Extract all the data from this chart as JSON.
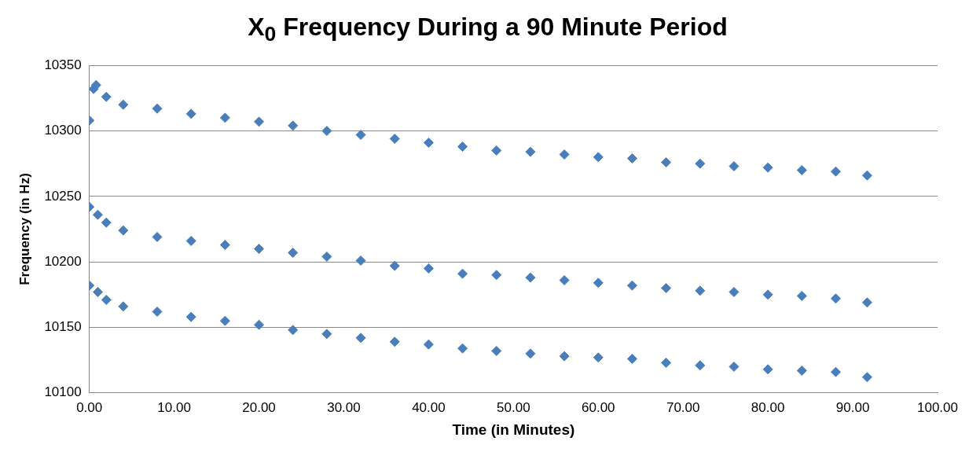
{
  "chart_data": {
    "type": "scatter",
    "title": "X$_{0}$ Frequency During a 90 Minute Period",
    "xlabel": "Time (in Minutes)",
    "ylabel": "Frequency (in Hz)",
    "xlim": [
      0,
      100
    ],
    "xticks": [
      {
        "value": 0,
        "label": "0.00"
      },
      {
        "value": 10,
        "label": "10.00"
      },
      {
        "value": 20,
        "label": "20.00"
      },
      {
        "value": 30,
        "label": "30.00"
      },
      {
        "value": 40,
        "label": "40.00"
      },
      {
        "value": 50,
        "label": "50.00"
      },
      {
        "value": 60,
        "label": "60.00"
      },
      {
        "value": 70,
        "label": "70.00"
      },
      {
        "value": 80,
        "label": "80.00"
      },
      {
        "value": 90,
        "label": "90.00"
      },
      {
        "value": 100,
        "label": "100.00"
      }
    ],
    "ylim": [
      10100,
      10350
    ],
    "yticks": [
      10100,
      10150,
      10200,
      10250,
      10300,
      10350
    ],
    "grid": "y",
    "legend": false,
    "marker": "diamond",
    "series": [
      {
        "color": "#4a7ebb",
        "x": [
          0,
          0.5,
          0.8,
          2,
          4,
          8,
          12,
          16,
          20,
          24,
          28,
          32,
          36,
          40,
          44,
          48,
          52,
          56,
          60,
          64,
          68,
          72,
          76,
          80,
          84,
          88,
          91.7
        ],
        "values": [
          10308,
          10332,
          10335,
          10326,
          10320,
          10317,
          10313,
          10310,
          10307,
          10304,
          10300,
          10297,
          10294,
          10291,
          10288,
          10285,
          10284,
          10282,
          10280,
          10279,
          10276,
          10275,
          10273,
          10272,
          10270,
          10269,
          10266
        ]
      },
      {
        "color": "#4a7ebb",
        "x": [
          0,
          1,
          2,
          4,
          8,
          12,
          16,
          20,
          24,
          28,
          32,
          36,
          40,
          44,
          48,
          52,
          56,
          60,
          64,
          68,
          72,
          76,
          80,
          84,
          88,
          91.7
        ],
        "values": [
          10242,
          10236,
          10230,
          10224,
          10219,
          10216,
          10213,
          10210,
          10207,
          10204,
          10201,
          10197,
          10195,
          10191,
          10190,
          10188,
          10186,
          10184,
          10182,
          10180,
          10178,
          10177,
          10175,
          10174,
          10172,
          10169
        ]
      },
      {
        "color": "#4a7ebb",
        "x": [
          0,
          1,
          2,
          4,
          8,
          12,
          16,
          20,
          24,
          28,
          32,
          36,
          40,
          44,
          48,
          52,
          56,
          60,
          64,
          68,
          72,
          76,
          80,
          84,
          88,
          91.7
        ],
        "values": [
          10182,
          10177,
          10171,
          10166,
          10162,
          10158,
          10155,
          10152,
          10148,
          10145,
          10142,
          10139,
          10137,
          10134,
          10132,
          10130,
          10128,
          10127,
          10126,
          10123,
          10121,
          10120,
          10118,
          10117,
          10116,
          10112
        ]
      }
    ]
  }
}
